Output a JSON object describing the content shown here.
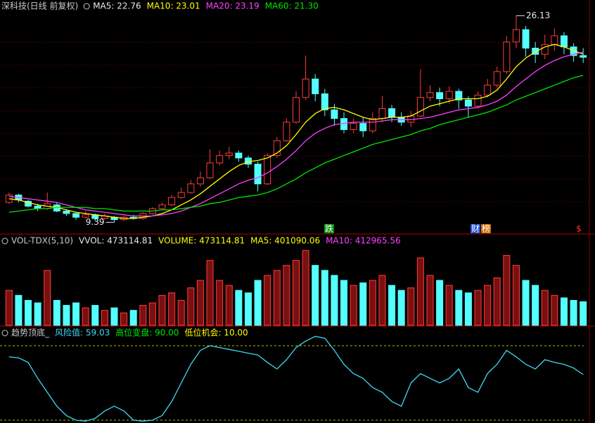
{
  "chart_data": [
    {
      "type": "candlestick",
      "title": "深科技(日线 前复权)",
      "legend": [
        {
          "text": "MA5: 22.76",
          "color": "#e8e8e8"
        },
        {
          "text": "MA10: 23.01",
          "color": "#ffff00"
        },
        {
          "text": "MA20: 23.19",
          "color": "#ff40ff"
        },
        {
          "text": "MA60: 21.30",
          "color": "#00e600"
        }
      ],
      "up_color": "#ff3c3c",
      "down_color": "#54ffff",
      "ylim": [
        8.5,
        27.4
      ],
      "open": [
        11.0,
        11.6,
        11.1,
        10.7,
        10.5,
        10.8,
        10.3,
        10.1,
        9.8,
        10.0,
        9.7,
        9.8,
        9.6,
        9.8,
        9.7,
        10.1,
        10.5,
        10.8,
        11.4,
        11.8,
        12.5,
        13.0,
        14.2,
        14.8,
        15.0,
        14.6,
        14.1,
        12.5,
        14.8,
        16.0,
        17.5,
        19.5,
        21.0,
        19.8,
        18.5,
        17.8,
        16.9,
        17.4,
        16.8,
        17.8,
        18.6,
        17.9,
        17.5,
        18.0,
        19.5,
        19.9,
        19.4,
        20.0,
        19.3,
        18.8,
        19.7,
        20.5,
        21.6,
        24.0,
        25.0,
        23.5,
        23.0,
        23.8,
        24.5,
        23.6,
        22.9
      ],
      "close": [
        11.6,
        11.2,
        10.7,
        10.5,
        10.9,
        10.3,
        10.1,
        9.8,
        10.0,
        9.7,
        9.9,
        9.6,
        9.8,
        9.7,
        10.1,
        10.5,
        10.8,
        11.4,
        11.8,
        12.5,
        13.0,
        14.2,
        14.8,
        15.0,
        14.6,
        14.1,
        12.5,
        14.8,
        16.0,
        17.5,
        19.5,
        21.0,
        19.8,
        18.5,
        17.8,
        16.9,
        17.4,
        16.8,
        17.8,
        18.6,
        17.9,
        17.5,
        18.0,
        19.5,
        19.9,
        19.4,
        20.0,
        19.3,
        18.8,
        19.7,
        20.5,
        21.6,
        24.0,
        25.0,
        23.5,
        23.0,
        23.8,
        24.5,
        23.6,
        22.9,
        22.76
      ],
      "high": [
        11.8,
        11.7,
        11.2,
        10.9,
        11.8,
        11.0,
        10.4,
        10.2,
        10.3,
        10.1,
        10.1,
        9.9,
        9.9,
        10.0,
        10.2,
        10.6,
        11.0,
        11.6,
        12.2,
        12.8,
        13.5,
        15.3,
        15.2,
        15.5,
        15.2,
        14.8,
        14.3,
        15.0,
        16.3,
        17.8,
        20.0,
        22.9,
        21.4,
        20.2,
        19.0,
        18.3,
        17.8,
        17.9,
        18.3,
        19.6,
        18.9,
        18.3,
        18.4,
        21.8,
        20.5,
        20.3,
        20.4,
        20.2,
        19.6,
        20.0,
        21.0,
        22.0,
        24.5,
        26.13,
        25.3,
        24.0,
        24.6,
        25.1,
        24.8,
        23.9,
        23.5
      ],
      "low": [
        10.9,
        11.0,
        10.6,
        10.3,
        10.4,
        10.2,
        9.9,
        9.6,
        9.7,
        9.5,
        9.6,
        9.39,
        9.5,
        9.6,
        9.6,
        10.0,
        10.4,
        10.7,
        11.3,
        11.7,
        12.3,
        12.9,
        14.0,
        14.5,
        14.3,
        13.8,
        11.9,
        12.4,
        14.6,
        15.9,
        17.4,
        19.3,
        19.2,
        18.0,
        17.2,
        16.6,
        16.6,
        16.3,
        16.6,
        17.5,
        17.5,
        17.2,
        17.1,
        17.9,
        19.2,
        18.8,
        19.0,
        18.6,
        17.9,
        18.6,
        19.5,
        20.3,
        21.4,
        23.5,
        22.8,
        22.3,
        22.6,
        23.3,
        23.0,
        22.4,
        22.3
      ],
      "lines": [
        {
          "color": "#ffff00",
          "values": [
            11.3,
            11.2,
            11.0,
            10.8,
            10.7,
            10.6,
            10.4,
            10.2,
            10.1,
            10.0,
            9.9,
            9.8,
            9.7,
            9.7,
            9.8,
            9.9,
            10.1,
            10.4,
            10.8,
            11.2,
            11.7,
            12.3,
            12.9,
            13.5,
            14.0,
            14.3,
            14.4,
            14.6,
            15.0,
            15.6,
            16.5,
            17.5,
            18.2,
            18.6,
            18.7,
            18.5,
            18.2,
            17.9,
            17.7,
            17.8,
            17.9,
            17.9,
            18.0,
            18.4,
            18.8,
            19.0,
            19.2,
            19.4,
            19.4,
            19.4,
            19.6,
            20.1,
            21.0,
            22.0,
            22.7,
            23.2,
            23.6,
            23.8,
            23.6,
            23.3,
            23.01
          ]
        },
        {
          "color": "#ff40ff",
          "values": [
            11.5,
            11.4,
            11.3,
            11.2,
            11.1,
            11.0,
            10.8,
            10.6,
            10.4,
            10.3,
            10.2,
            10.1,
            10.0,
            9.9,
            9.9,
            9.9,
            10.0,
            10.1,
            10.3,
            10.6,
            10.9,
            11.3,
            11.7,
            12.1,
            12.5,
            12.8,
            13.0,
            13.4,
            13.9,
            14.5,
            15.2,
            16.0,
            16.6,
            17.0,
            17.3,
            17.4,
            17.5,
            17.5,
            17.5,
            17.6,
            17.7,
            17.7,
            17.7,
            17.8,
            17.9,
            18.1,
            18.3,
            18.5,
            18.6,
            18.7,
            18.9,
            19.2,
            19.7,
            20.4,
            21.0,
            21.6,
            22.1,
            22.5,
            22.8,
            23.0,
            23.19
          ]
        },
        {
          "color": "#00e600",
          "values": [
            10.2,
            10.3,
            10.4,
            10.5,
            10.5,
            10.6,
            10.6,
            10.6,
            10.6,
            10.5,
            10.5,
            10.4,
            10.3,
            10.3,
            10.3,
            10.3,
            10.4,
            10.4,
            10.5,
            10.6,
            10.7,
            10.9,
            11.0,
            11.2,
            11.4,
            11.5,
            11.6,
            11.8,
            12.1,
            12.5,
            12.9,
            13.4,
            13.8,
            14.2,
            14.5,
            14.8,
            15.1,
            15.4,
            15.7,
            15.9,
            16.1,
            16.3,
            16.5,
            16.8,
            17.0,
            17.3,
            17.5,
            17.7,
            17.9,
            18.1,
            18.3,
            18.6,
            18.9,
            19.3,
            19.6,
            19.9,
            20.2,
            20.5,
            20.8,
            21.1,
            21.3
          ]
        }
      ],
      "annotations": [
        {
          "text": "26.13",
          "value": 26.13,
          "at": "high"
        },
        {
          "text": "9.39",
          "value": 9.39,
          "at": "low"
        }
      ]
    },
    {
      "type": "bar",
      "title": "VOL-TDX(5,10)",
      "legend": [
        {
          "text": "VVOL: 473114.81",
          "color": "#e8e8e8"
        },
        {
          "text": "VOLUME: 473114.81",
          "color": "#ffff00"
        },
        {
          "text": "MA5: 401090.06",
          "color": "#ffff00"
        },
        {
          "text": "MA10: 412965.56",
          "color": "#ff40ff"
        }
      ],
      "ylim": [
        0,
        1800000
      ],
      "values": [
        700000,
        600000,
        500000,
        450000,
        1100000,
        500000,
        400000,
        450000,
        350000,
        400000,
        300000,
        350000,
        250000,
        300000,
        400000,
        450000,
        600000,
        650000,
        500000,
        750000,
        900000,
        1300000,
        900000,
        800000,
        700000,
        650000,
        900000,
        1000000,
        1100000,
        1200000,
        1300000,
        1500000,
        1200000,
        1100000,
        1000000,
        900000,
        800000,
        850000,
        900000,
        1000000,
        800000,
        700000,
        750000,
        1350000,
        1000000,
        900000,
        800000,
        700000,
        650000,
        700000,
        800000,
        950000,
        1400000,
        1200000,
        900000,
        800000,
        700000,
        600000,
        550000,
        500000,
        473114.81
      ]
    },
    {
      "type": "line",
      "title": "趋势顶底_",
      "legend": [
        {
          "text": "风险值: 59.03",
          "color": "#3fd9f0"
        },
        {
          "text": "高位变盘: 90.00",
          "color": "#00e600"
        },
        {
          "text": "低位机会: 10.00",
          "color": "#ffff00"
        }
      ],
      "color": "#3fd9f0",
      "ylim": [
        7,
        109.6
      ],
      "levels": [
        {
          "value": 90,
          "color": "#b4b400"
        },
        {
          "value": 10,
          "color": "#b4b400"
        }
      ],
      "values": [
        78,
        77,
        72,
        55,
        40,
        25,
        15,
        10,
        9,
        12,
        20,
        25,
        20,
        10,
        9,
        10,
        15,
        30,
        50,
        70,
        85,
        90,
        88,
        86,
        84,
        82,
        80,
        72,
        65,
        75,
        88,
        95,
        100,
        98,
        85,
        70,
        60,
        55,
        45,
        40,
        30,
        25,
        50,
        60,
        55,
        50,
        55,
        65,
        45,
        40,
        60,
        70,
        85,
        78,
        70,
        65,
        75,
        72,
        70,
        66,
        59.03
      ]
    }
  ],
  "markers": [
    "跌",
    "财",
    "榜",
    "$"
  ]
}
